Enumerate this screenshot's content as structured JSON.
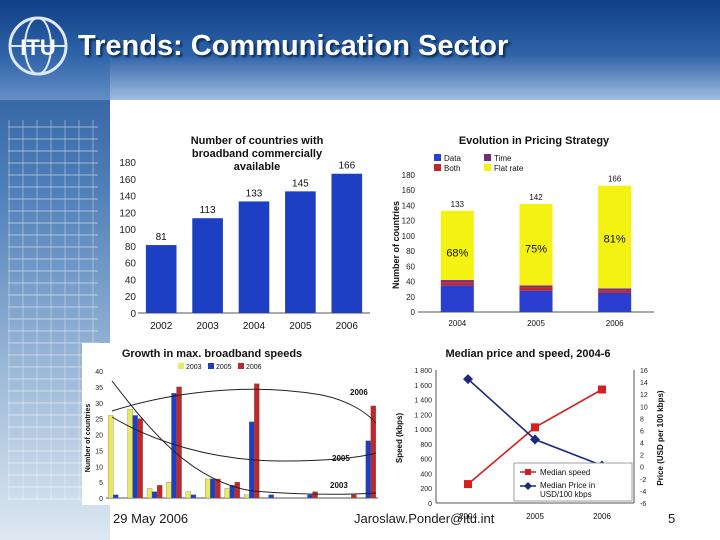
{
  "slide": {
    "title": "Trends: Communication Sector",
    "logo_text": "ITU",
    "footer_date": "29 May 2006",
    "footer_email": "Jaroslaw.Ponder@itu.int",
    "page_number": "5"
  },
  "chart_data": [
    {
      "type": "bar",
      "title": "Number of countries with broadband commercially available",
      "categories": [
        "2002",
        "2003",
        "2004",
        "2005",
        "2006"
      ],
      "values": [
        81,
        113,
        133,
        145,
        166
      ],
      "ylim": [
        0,
        180
      ],
      "yticks": [
        "0",
        "20",
        "40",
        "60",
        "80",
        "100",
        "120",
        "140",
        "160",
        "180"
      ],
      "color": "#1d3fc4"
    },
    {
      "type": "bar",
      "stacked": true,
      "title": "Evolution in Pricing Strategy",
      "ylabel": "Number of countries",
      "categories": [
        "2004",
        "2005",
        "2006"
      ],
      "totals": [
        "133",
        "142",
        "166"
      ],
      "percent_labels": [
        "68%",
        "75%",
        "81%"
      ],
      "ylim": [
        0,
        180
      ],
      "yticks": [
        "0",
        "20",
        "40",
        "60",
        "80",
        "100",
        "120",
        "140",
        "160",
        "180"
      ],
      "legend": [
        "Data",
        "Time",
        "Both",
        "Flat rate"
      ],
      "series": [
        {
          "name": "Data",
          "color": "#2a3fd0",
          "values": [
            35,
            28,
            25
          ]
        },
        {
          "name": "Both",
          "color": "#c0282a",
          "values": [
            4,
            4,
            3
          ]
        },
        {
          "name": "Time",
          "color": "#7a2a7a",
          "values": [
            3,
            3,
            3
          ]
        },
        {
          "name": "Flat rate",
          "color": "#f4f212",
          "values": [
            91,
            107,
            135
          ]
        }
      ]
    },
    {
      "type": "bar",
      "title": "Growth in max. broadband speeds",
      "xlabel": "Speed (kbps)",
      "ylabel": "Number of countries",
      "ylim": [
        0,
        40
      ],
      "yticks": [
        "0",
        "5",
        "10",
        "15",
        "20",
        "25",
        "30",
        "35",
        "40"
      ],
      "legend": [
        "2003",
        "2005",
        "2006"
      ],
      "categories": [
        "256",
        "512",
        "768",
        "1000",
        "1500",
        "2000",
        "3000",
        "4000",
        "5000",
        "6000",
        "8000",
        "10000",
        "20000",
        "24000"
      ],
      "series": [
        {
          "name": "2003",
          "color": "#eaea60",
          "values": [
            26,
            28,
            3,
            5,
            2,
            6,
            3,
            1,
            0,
            0,
            0,
            0,
            0,
            0
          ]
        },
        {
          "name": "2005",
          "color": "#1d3fc4",
          "values": [
            1,
            26,
            2,
            33,
            1,
            6,
            4,
            24,
            1,
            0,
            1,
            0,
            0,
            18
          ]
        },
        {
          "name": "2006",
          "color": "#c0282a",
          "values": [
            0,
            25,
            4,
            35,
            0,
            6,
            5,
            36,
            0,
            0,
            2,
            0,
            1,
            29
          ]
        }
      ],
      "annotations": [
        "2006",
        "2005",
        "2003"
      ]
    },
    {
      "type": "line",
      "title": "Median price and speed, 2004-6",
      "ylabel": "Speed (kbps)",
      "y2label": "Price (USD per 100 kbps)",
      "categories": [
        "2004",
        "2005",
        "2006"
      ],
      "ylim": [
        0,
        1800
      ],
      "yticks": [
        "0",
        "200",
        "400",
        "600",
        "800",
        "1 000",
        "1 200",
        "1 400",
        "1 600",
        "1 800"
      ],
      "y2lim": [
        -6,
        16
      ],
      "y2ticks": [
        "-6",
        "-4",
        "-2",
        "0",
        "2",
        "4",
        "6",
        "8",
        "10",
        "12",
        "14",
        "16"
      ],
      "series": [
        {
          "name": "Median speed",
          "color": "#d42020",
          "axis": "left",
          "values": [
            256,
            1024,
            1536
          ]
        },
        {
          "name": "Median Price in USD/100 kbps",
          "color": "#1a2a80",
          "axis": "right",
          "values": [
            14.5,
            4.5,
            0.2
          ]
        }
      ]
    }
  ]
}
